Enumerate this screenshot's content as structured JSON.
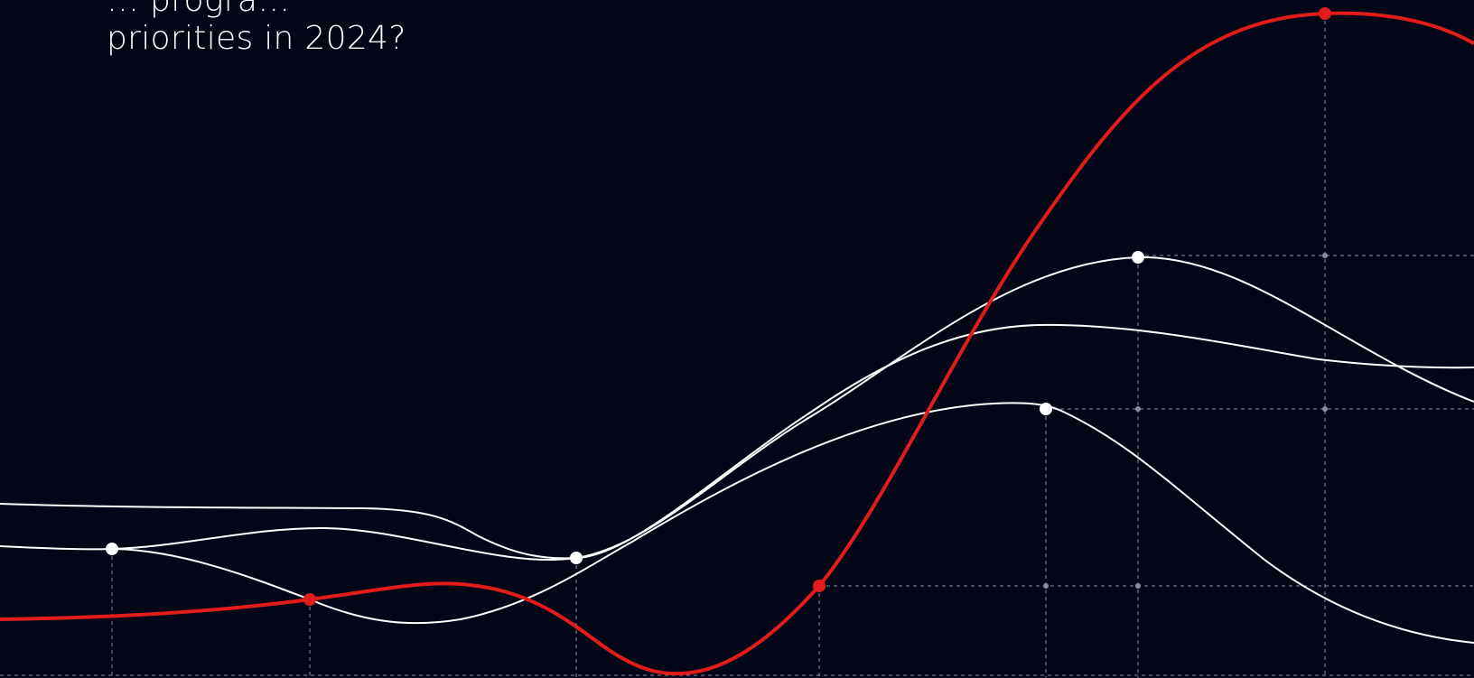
{
  "headline": {
    "line1": "… progra…",
    "line2": "priorities in 2024?"
  },
  "colors": {
    "background": "#030617",
    "accent_line": "#e21b1b",
    "line": "#ffffff",
    "grid": "#8a8f9e"
  }
}
